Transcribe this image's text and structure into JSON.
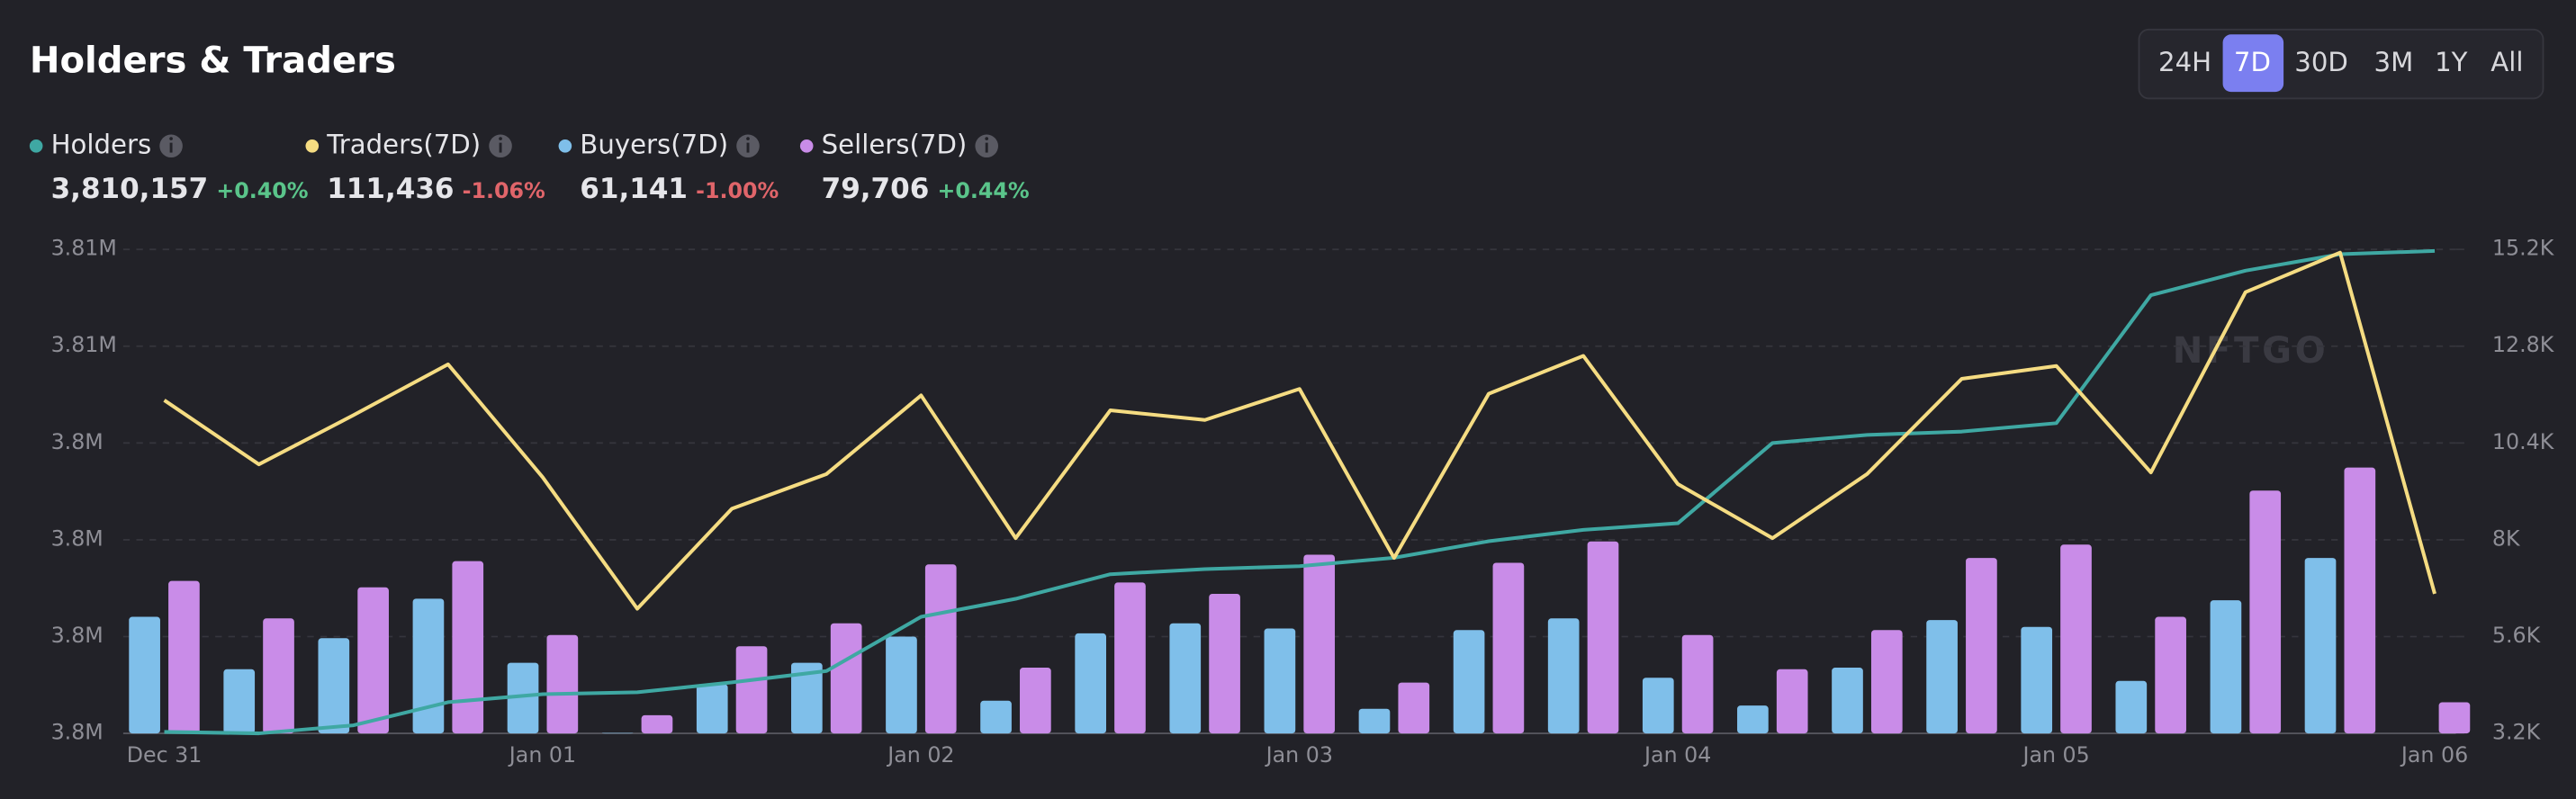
{
  "title": "Holders & Traders",
  "range_options": [
    "24H",
    "7D",
    "30D",
    "3M",
    "1Y",
    "All"
  ],
  "active_range": 1,
  "watermark": "NFTGO",
  "chart_data": {
    "type": "combo",
    "categories": [
      "Dec 31",
      null,
      null,
      null,
      "Jan 01",
      null,
      null,
      null,
      "Jan 02",
      null,
      null,
      null,
      "Jan 03",
      null,
      null,
      null,
      "Jan 04",
      null,
      null,
      null,
      "Jan 05",
      null,
      null,
      null,
      "Jan 06"
    ],
    "ylim": [
      3797000,
      3810200
    ],
    "yticks": [
      {
        "value": 3797000,
        "label": "3.8M"
      },
      {
        "value": 3799640,
        "label": "3.8M"
      },
      {
        "value": 3802280,
        "label": "3.8M"
      },
      {
        "value": 3804920,
        "label": "3.8M"
      },
      {
        "value": 3807560,
        "label": "3.81M"
      },
      {
        "value": 3810200,
        "label": "3.81M"
      }
    ],
    "y2lim": [
      3200,
      15200
    ],
    "y2ticks": [
      {
        "value": 3200,
        "label": "3.2K"
      },
      {
        "value": 5600,
        "label": "5.6K"
      },
      {
        "value": 8000,
        "label": "8K"
      },
      {
        "value": 10400,
        "label": "10.4K"
      },
      {
        "value": 12800,
        "label": "12.8K"
      },
      {
        "value": 15200,
        "label": "15.2K"
      }
    ],
    "grid": true,
    "series": [
      {
        "name": "Holders",
        "type": "line",
        "axis": "y",
        "color": "#3fa8a3",
        "total": "3,810,157",
        "change": "+0.40%",
        "values": [
          3797040,
          3797000,
          3797220,
          3797850,
          3798070,
          3798120,
          3798390,
          3798700,
          3800180,
          3800670,
          3801340,
          3801480,
          3801560,
          3801790,
          3802240,
          3802550,
          3802730,
          3804920,
          3805140,
          3805230,
          3805460,
          3808950,
          3809620,
          3810070,
          3810157
        ]
      },
      {
        "name": "Traders(7D)",
        "type": "line",
        "axis": "y2",
        "color": "#f5dc82",
        "total": "111,436",
        "change": "-1.06%",
        "values": [
          11460,
          9870,
          11090,
          12350,
          9550,
          6290,
          8770,
          9630,
          11580,
          8040,
          11210,
          10970,
          11740,
          7550,
          11620,
          12560,
          9380,
          8040,
          9630,
          11990,
          12310,
          9670,
          14140,
          15120,
          6660
        ]
      },
      {
        "name": "Buyers(7D)",
        "type": "bar",
        "axis": "y2",
        "color": "#7fbfea",
        "total": "61,141",
        "change": "-1.00%",
        "values": [
          6090,
          4790,
          5560,
          6540,
          4950,
          3210,
          4420,
          4950,
          5600,
          4010,
          5680,
          5930,
          5800,
          3810,
          5760,
          6050,
          4580,
          3890,
          4830,
          6010,
          5840,
          4500,
          6500,
          7550,
          3200
        ]
      },
      {
        "name": "Sellers(7D)",
        "type": "bar",
        "axis": "y2",
        "color": "#c98ce8",
        "total": "79,706",
        "change": "+0.44%",
        "values": [
          6980,
          6050,
          6820,
          7470,
          5640,
          3650,
          5360,
          5930,
          7390,
          4830,
          6940,
          6660,
          7630,
          4460,
          7430,
          7960,
          5640,
          4790,
          5760,
          7550,
          7880,
          6090,
          9220,
          9790,
          3970
        ]
      }
    ]
  }
}
